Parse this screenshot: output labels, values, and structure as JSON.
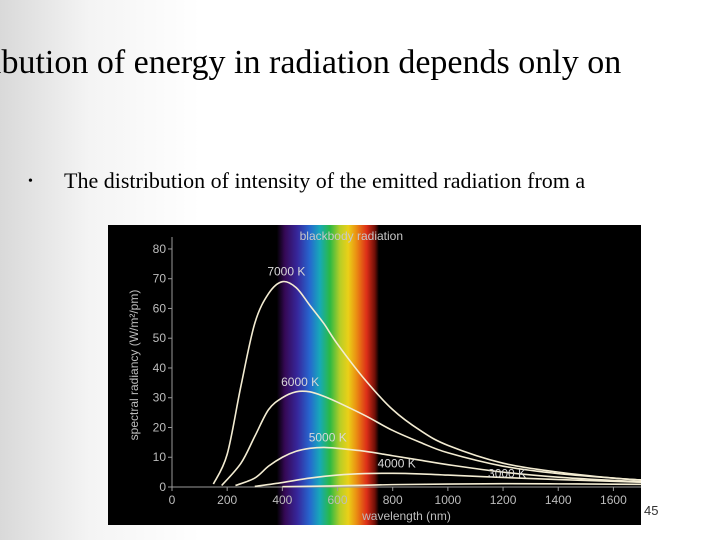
{
  "slide": {
    "title": "ibution of energy in radiation depends only on",
    "bullet": "The distribution of intensity of the emitted radiation from a",
    "page_number": "45"
  },
  "colors": {
    "background": "#000000",
    "curve": "#f3ecd2",
    "axis": "#9a9a9a",
    "label": "#bdbdbd"
  },
  "chart_data": {
    "type": "line",
    "title": "blackbody radiation",
    "xlabel": "wavelength (nm)",
    "ylabel": "spectral radiancy (W/m²/pm)",
    "xlim": [
      0,
      1700
    ],
    "ylim": [
      0,
      82
    ],
    "xticks": [
      0,
      200,
      400,
      600,
      800,
      1000,
      1200,
      1400,
      1600
    ],
    "yticks": [
      0,
      10,
      20,
      30,
      40,
      50,
      60,
      70,
      80
    ],
    "visible_spectrum_nm": [
      380,
      750
    ],
    "grid": false,
    "series": [
      {
        "name": "7000 K",
        "x": [
          150,
          200,
          250,
          300,
          350,
          400,
          450,
          500,
          550,
          600,
          700,
          800,
          900,
          1000,
          1200,
          1400,
          1600,
          1700
        ],
        "y": [
          1,
          11,
          34,
          55,
          65,
          69,
          67,
          61,
          55,
          48,
          36,
          26,
          19,
          14,
          8,
          5,
          3,
          2.4
        ]
      },
      {
        "name": "6000 K",
        "x": [
          180,
          250,
          300,
          350,
          400,
          450,
          500,
          550,
          600,
          700,
          800,
          900,
          1000,
          1200,
          1400,
          1600,
          1700
        ],
        "y": [
          0.5,
          8,
          17,
          26,
          30,
          32,
          32,
          30.5,
          28.5,
          24,
          19,
          15,
          11.5,
          7,
          4.5,
          3,
          2.3
        ]
      },
      {
        "name": "5000 K",
        "x": [
          230,
          300,
          350,
          400,
          450,
          500,
          550,
          600,
          700,
          800,
          900,
          1000,
          1200,
          1400,
          1600,
          1700
        ],
        "y": [
          0.5,
          3,
          7,
          10,
          12,
          13,
          13.3,
          13,
          12,
          10.5,
          9,
          7.5,
          5,
          3.3,
          2.2,
          1.8
        ]
      },
      {
        "name": "4000 K",
        "x": [
          300,
          400,
          500,
          600,
          700,
          800,
          900,
          1000,
          1200,
          1400,
          1600,
          1700
        ],
        "y": [
          0.2,
          1.5,
          3,
          4,
          4.5,
          4.6,
          4.4,
          4,
          3.2,
          2.5,
          1.9,
          1.6
        ]
      },
      {
        "name": "3000 K",
        "x": [
          400,
          600,
          800,
          1000,
          1200,
          1400,
          1600,
          1700
        ],
        "y": [
          0.1,
          0.4,
          0.8,
          1.0,
          1.1,
          1.05,
          0.95,
          0.9
        ]
      }
    ]
  }
}
